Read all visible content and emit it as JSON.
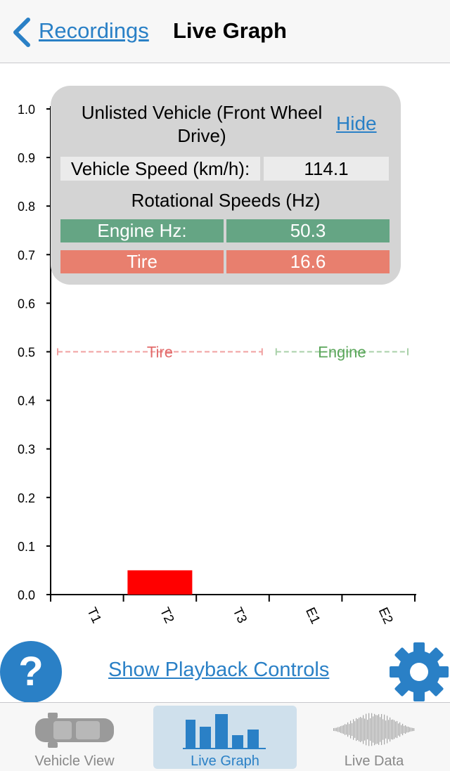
{
  "navbar": {
    "back_label": "Recordings",
    "title": "Live Graph"
  },
  "chart_data": {
    "type": "bar",
    "categories": [
      "T1",
      "T2",
      "T3",
      "E1",
      "E2"
    ],
    "values": [
      0,
      0.05,
      0,
      0,
      0
    ],
    "ylim": [
      0,
      1.0
    ],
    "yticks": [
      "0.0",
      "0.1",
      "0.2",
      "0.3",
      "0.4",
      "0.5",
      "0.6",
      "0.7",
      "0.8",
      "0.9",
      "1.0"
    ],
    "bar_color": "#ff0000",
    "ranges": [
      {
        "label": "Tire",
        "from": "T1",
        "to": "T3",
        "y": 0.5,
        "color": "#f0a0a0",
        "text_color": "#e26b6b"
      },
      {
        "label": "Engine",
        "from": "E1",
        "to": "E2",
        "y": 0.5,
        "color": "#a8d0a8",
        "text_color": "#5aa65a"
      }
    ]
  },
  "info_panel": {
    "vehicle_name": "Unlisted Vehicle (Front Wheel Drive)",
    "hide_label": "Hide",
    "speed_label": "Vehicle Speed (km/h):",
    "speed_value": "114.1",
    "rotational_title": "Rotational Speeds (Hz)",
    "engine_label": "Engine Hz:",
    "engine_value": "50.3",
    "tire_label": "Tire",
    "tire_value": "16.6"
  },
  "controls": {
    "help_label": "?",
    "playback_label": "Show Playback Controls"
  },
  "colors": {
    "accent": "#2a80c6",
    "engine": "#65a584",
    "tire": "#e87f6e"
  },
  "tabs": [
    {
      "label": "Vehicle View",
      "icon": "car-icon",
      "active": false
    },
    {
      "label": "Live Graph",
      "icon": "bar-chart-icon",
      "active": true
    },
    {
      "label": "Live Data",
      "icon": "waveform-icon",
      "active": false
    }
  ]
}
